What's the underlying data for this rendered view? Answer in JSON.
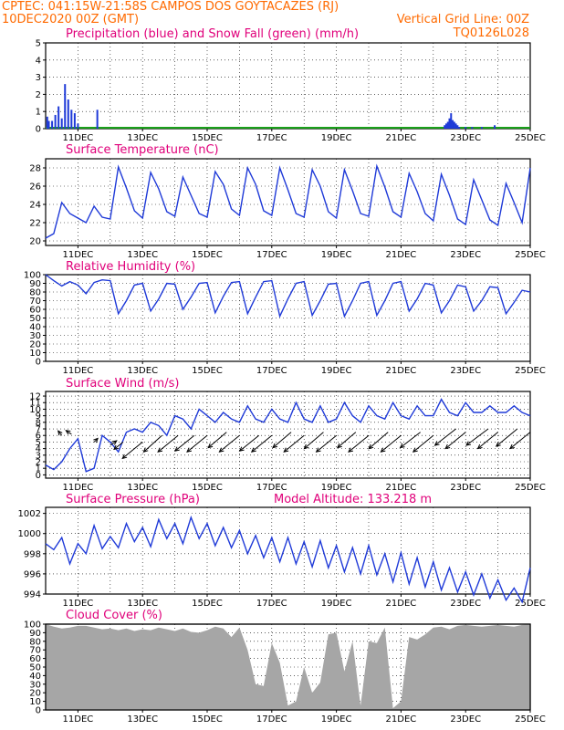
{
  "header": {
    "line1": "CPTEC:   041:15W-21:58S   CAMPOS DOS GOYTACAZES (RJ)",
    "date": "10DEC2020 00Z (GMT)",
    "grid_note": "Vertical Grid Line: 00Z",
    "code": "TQ0126L028"
  },
  "colors": {
    "header": "#ff6a00",
    "title": "#e0007a",
    "line": "#1f3ad8",
    "precip": "#1f3ad8",
    "snow": "#1aa01a",
    "cloud": "#a6a6a6"
  },
  "date_labels": [
    "11DEC",
    "13DEC",
    "15DEC",
    "17DEC",
    "19DEC",
    "21DEC",
    "23DEC",
    "25DEC"
  ],
  "chart_data": [
    {
      "type": "bar",
      "id": "precip",
      "title": "Precipitation (blue) and Snow Fall (green) (mm/h)",
      "ylim": [
        0,
        5
      ],
      "yticks": [
        0,
        1,
        2,
        3,
        4,
        5
      ],
      "x_unit": "days from 10DEC00Z",
      "bars_x": [
        0.05,
        0.1,
        0.2,
        0.3,
        0.4,
        0.5,
        0.6,
        0.7,
        0.8,
        0.9,
        1.0,
        1.6,
        12.35,
        12.4,
        12.45,
        12.5,
        12.55,
        12.6,
        12.65,
        12.7,
        12.75,
        12.8,
        13.0,
        13.2,
        13.5,
        13.9
      ],
      "bars_y": [
        0.7,
        0.45,
        0.45,
        0.8,
        1.3,
        0.6,
        2.6,
        1.7,
        1.1,
        0.9,
        0.3,
        1.1,
        0.2,
        0.3,
        0.4,
        0.6,
        0.9,
        0.5,
        0.4,
        0.3,
        0.2,
        0.1,
        0.1,
        0.1,
        0.1,
        0.2
      ],
      "snow": 0
    },
    {
      "type": "line",
      "id": "temp",
      "title": "Surface Temperature (nC)",
      "ylim": [
        19.5,
        29
      ],
      "yticks": [
        20,
        22,
        24,
        26,
        28
      ],
      "x": [
        0.0,
        0.25,
        0.5,
        0.75,
        1.0,
        1.25,
        1.5,
        1.75,
        2.0,
        2.25,
        2.5,
        2.75,
        3.0,
        3.25,
        3.5,
        3.75,
        4.0,
        4.25,
        4.5,
        4.75,
        5.0,
        5.25,
        5.5,
        5.75,
        6.0,
        6.25,
        6.5,
        6.75,
        7.0,
        7.25,
        7.5,
        7.75,
        8.0,
        8.25,
        8.5,
        8.75,
        9.0,
        9.25,
        9.5,
        9.75,
        10.0,
        10.25,
        10.5,
        10.75,
        11.0,
        11.25,
        11.5,
        11.75,
        12.0,
        12.25,
        12.5,
        12.75,
        13.0,
        13.25,
        13.5,
        13.75,
        14.0,
        14.25,
        14.5,
        14.75,
        15.0
      ],
      "y": [
        20.3,
        20.8,
        24.2,
        23.0,
        22.5,
        22.0,
        23.8,
        22.6,
        22.4,
        28.1,
        25.8,
        23.3,
        22.5,
        27.5,
        25.7,
        23.2,
        22.7,
        27.0,
        25.0,
        23.0,
        22.6,
        27.6,
        26.2,
        23.5,
        22.8,
        28.0,
        26.2,
        23.3,
        22.8,
        28.0,
        25.6,
        23.0,
        22.6,
        27.8,
        26.0,
        23.2,
        22.5,
        27.8,
        25.5,
        23.0,
        22.7,
        28.2,
        25.9,
        23.2,
        22.6,
        27.4,
        25.4,
        23.0,
        22.2,
        27.3,
        25.0,
        22.4,
        21.8,
        26.7,
        24.5,
        22.3,
        21.7,
        26.3,
        24.2,
        22.0,
        28.0
      ]
    },
    {
      "type": "line",
      "id": "rh",
      "title": "Relative Humidity (%)",
      "ylim": [
        0,
        100
      ],
      "yticks": [
        0,
        10,
        20,
        30,
        40,
        50,
        60,
        70,
        80,
        90,
        100
      ],
      "x": [
        0.0,
        0.25,
        0.5,
        0.75,
        1.0,
        1.25,
        1.5,
        1.75,
        2.0,
        2.25,
        2.5,
        2.75,
        3.0,
        3.25,
        3.5,
        3.75,
        4.0,
        4.25,
        4.5,
        4.75,
        5.0,
        5.25,
        5.5,
        5.75,
        6.0,
        6.25,
        6.5,
        6.75,
        7.0,
        7.25,
        7.5,
        7.75,
        8.0,
        8.25,
        8.5,
        8.75,
        9.0,
        9.25,
        9.5,
        9.75,
        10.0,
        10.25,
        10.5,
        10.75,
        11.0,
        11.25,
        11.5,
        11.75,
        12.0,
        12.25,
        12.5,
        12.75,
        13.0,
        13.25,
        13.5,
        13.75,
        14.0,
        14.25,
        14.5,
        14.75,
        15.0
      ],
      "y": [
        100,
        93,
        87,
        92,
        88,
        78,
        91,
        94,
        93,
        55,
        70,
        88,
        90,
        58,
        72,
        90,
        89,
        60,
        74,
        90,
        91,
        56,
        75,
        91,
        92,
        55,
        74,
        92,
        93,
        52,
        72,
        90,
        92,
        53,
        70,
        89,
        90,
        52,
        70,
        90,
        92,
        53,
        70,
        90,
        92,
        58,
        72,
        90,
        88,
        56,
        70,
        88,
        86,
        58,
        70,
        86,
        85,
        55,
        68,
        82,
        80
      ]
    },
    {
      "type": "line",
      "id": "wind",
      "title": "Surface Wind (m/s)",
      "ylim": [
        -0.5,
        12.7
      ],
      "yticks": [
        0,
        1,
        2,
        3,
        4,
        5,
        6,
        7,
        8,
        9,
        10,
        11,
        12
      ],
      "x": [
        0.0,
        0.25,
        0.5,
        0.75,
        1.0,
        1.25,
        1.5,
        1.75,
        2.0,
        2.25,
        2.5,
        2.75,
        3.0,
        3.25,
        3.5,
        3.75,
        4.0,
        4.25,
        4.5,
        4.75,
        5.0,
        5.25,
        5.5,
        5.75,
        6.0,
        6.25,
        6.5,
        6.75,
        7.0,
        7.25,
        7.5,
        7.75,
        8.0,
        8.25,
        8.5,
        8.75,
        9.0,
        9.25,
        9.5,
        9.75,
        10.0,
        10.25,
        10.5,
        10.75,
        11.0,
        11.25,
        11.5,
        11.75,
        12.0,
        12.25,
        12.5,
        12.75,
        13.0,
        13.25,
        13.5,
        13.75,
        14.0,
        14.25,
        14.5,
        14.75,
        15.0
      ],
      "y": [
        1.5,
        0.8,
        2.0,
        4.0,
        5.5,
        0.5,
        1.0,
        6.0,
        5.0,
        3.5,
        6.5,
        7.0,
        6.5,
        8.0,
        7.5,
        6.0,
        9.0,
        8.5,
        7.0,
        10.0,
        9.0,
        8.0,
        9.5,
        8.5,
        8.0,
        10.5,
        8.5,
        8.0,
        10.0,
        8.5,
        8.0,
        11.0,
        8.5,
        8.0,
        10.5,
        8.0,
        8.5,
        11.0,
        9.0,
        8.0,
        10.5,
        9.0,
        8.5,
        11.0,
        9.0,
        8.5,
        10.5,
        9.0,
        9.0,
        11.5,
        9.5,
        9.0,
        11.0,
        9.5,
        9.5,
        10.5,
        9.5,
        9.5,
        10.5,
        9.5,
        9.0
      ],
      "arrows_x": [
        0.5,
        0.8,
        1.5,
        2.0,
        2.4,
        3.0,
        3.6,
        4.1,
        4.6,
        5.0,
        5.6,
        6.0,
        6.6,
        7.0,
        7.6,
        8.0,
        8.6,
        9.0,
        9.6,
        10.0,
        10.6,
        11.0,
        11.6,
        12.0,
        12.7,
        13.0,
        13.7,
        14.0,
        14.6,
        15.0
      ],
      "arrows_y": [
        6.0,
        6.2,
        5.0,
        4.5,
        5.0,
        5.0,
        6.0,
        6.0,
        6.0,
        6.0,
        6.5,
        6.0,
        6.0,
        6.0,
        6.5,
        6.0,
        6.5,
        6.0,
        6.5,
        6.0,
        6.5,
        6.0,
        6.5,
        6.0,
        7.0,
        6.5,
        7.0,
        6.5,
        7.0,
        6.5
      ],
      "arrows_dx": [
        -4,
        -6,
        4,
        7,
        -10,
        -22,
        -20,
        -22,
        -21,
        -22,
        -20,
        -22,
        -21,
        -22,
        -20,
        -22,
        -21,
        -22,
        -20,
        -22,
        -21,
        -22,
        -22,
        -22,
        -23,
        -22,
        -24,
        -22,
        -23,
        -22
      ],
      "arrows_dy": [
        -5,
        -4,
        -4,
        -5,
        8,
        18,
        18,
        18,
        17,
        18,
        17,
        18,
        17,
        18,
        17,
        18,
        18,
        18,
        17,
        18,
        18,
        18,
        17,
        18,
        18,
        18,
        18,
        18,
        19,
        18
      ]
    },
    {
      "type": "line",
      "id": "pres",
      "title": "Surface Pressure (hPa)",
      "model_altitude": "Model Altitude: 133.218 m",
      "ylim": [
        994,
        1002.6
      ],
      "yticks": [
        994,
        996,
        998,
        1000,
        1002
      ],
      "x": [
        0.0,
        0.25,
        0.5,
        0.75,
        1.0,
        1.25,
        1.5,
        1.75,
        2.0,
        2.25,
        2.5,
        2.75,
        3.0,
        3.25,
        3.5,
        3.75,
        4.0,
        4.25,
        4.5,
        4.75,
        5.0,
        5.25,
        5.5,
        5.75,
        6.0,
        6.25,
        6.5,
        6.75,
        7.0,
        7.25,
        7.5,
        7.75,
        8.0,
        8.25,
        8.5,
        8.75,
        9.0,
        9.25,
        9.5,
        9.75,
        10.0,
        10.25,
        10.5,
        10.75,
        11.0,
        11.25,
        11.5,
        11.75,
        12.0,
        12.25,
        12.5,
        12.75,
        13.0,
        13.25,
        13.5,
        13.75,
        14.0,
        14.25,
        14.5,
        14.75,
        15.0
      ],
      "y": [
        999.0,
        998.4,
        999.6,
        997.0,
        999.0,
        998.0,
        1000.8,
        998.5,
        999.7,
        998.6,
        1001.0,
        999.2,
        1000.6,
        998.7,
        1001.4,
        999.5,
        1001.0,
        999.0,
        1001.6,
        999.5,
        1001.0,
        998.8,
        1000.6,
        998.6,
        1000.3,
        998.0,
        999.8,
        997.6,
        999.6,
        997.2,
        999.6,
        997.0,
        999.2,
        996.7,
        999.3,
        996.6,
        998.8,
        996.2,
        998.6,
        996.0,
        998.8,
        995.9,
        998.0,
        995.2,
        998.1,
        995.0,
        997.6,
        994.7,
        997.2,
        994.4,
        996.6,
        994.2,
        996.2,
        993.9,
        996.0,
        993.6,
        995.4,
        993.4,
        994.6,
        993.2,
        996.6
      ]
    },
    {
      "type": "area",
      "id": "cloud",
      "title": "Cloud Cover (%)",
      "ylim": [
        0,
        100
      ],
      "yticks": [
        0,
        10,
        20,
        30,
        40,
        50,
        60,
        70,
        80,
        90,
        100
      ],
      "x": [
        0.0,
        0.25,
        0.5,
        0.75,
        1.0,
        1.25,
        1.5,
        1.75,
        2.0,
        2.25,
        2.5,
        2.75,
        3.0,
        3.25,
        3.5,
        3.75,
        4.0,
        4.25,
        4.5,
        4.75,
        5.0,
        5.25,
        5.5,
        5.75,
        6.0,
        6.25,
        6.5,
        6.75,
        7.0,
        7.25,
        7.5,
        7.75,
        8.0,
        8.25,
        8.5,
        8.75,
        9.0,
        9.25,
        9.5,
        9.75,
        10.0,
        10.25,
        10.5,
        10.75,
        11.0,
        11.25,
        11.5,
        11.75,
        12.0,
        12.25,
        12.5,
        12.75,
        13.0,
        13.25,
        13.5,
        13.75,
        14.0,
        14.25,
        14.5,
        14.75,
        15.0
      ],
      "y": [
        100,
        97,
        95,
        96,
        98,
        98,
        96,
        94,
        95,
        93,
        95,
        92,
        94,
        93,
        96,
        94,
        92,
        95,
        91,
        90,
        93,
        97,
        95,
        85,
        96,
        70,
        30,
        28,
        78,
        55,
        5,
        10,
        50,
        20,
        32,
        88,
        90,
        45,
        80,
        5,
        80,
        78,
        96,
        2,
        10,
        85,
        82,
        88,
        96,
        97,
        94,
        98,
        99,
        98,
        97,
        98,
        99,
        98,
        97,
        99,
        100
      ]
    }
  ]
}
